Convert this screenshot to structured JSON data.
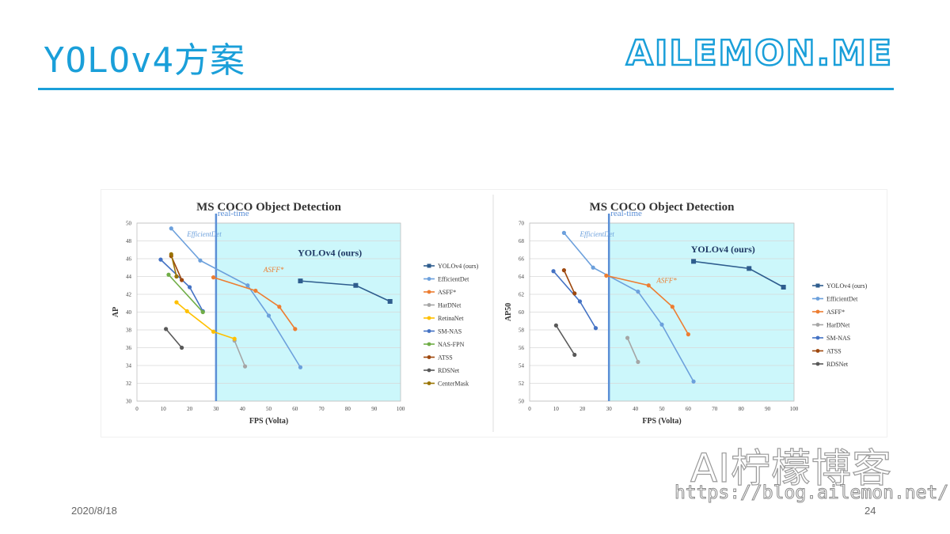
{
  "slide": {
    "title": "YOLOv4方案",
    "brand": "AILEMON.ME",
    "date": "2020/8/18",
    "page_number": "24"
  },
  "watermark": {
    "title": "AI柠檬博客",
    "url": "https://blog.ailemon.net/"
  },
  "colors": {
    "accent": "#1a9fd9",
    "realtime_fill": "#ccf7fb",
    "realtime_line": "#5b8fd6"
  },
  "chart_data": [
    {
      "type": "line",
      "title": "MS COCO Object Detection",
      "xlabel": "FPS (Volta)",
      "ylabel": "AP",
      "xlim": [
        0,
        100
      ],
      "ylim": [
        30,
        50
      ],
      "xticks": [
        0,
        10,
        20,
        30,
        40,
        50,
        60,
        70,
        80,
        90,
        100
      ],
      "yticks": [
        30,
        32,
        34,
        36,
        38,
        40,
        42,
        44,
        46,
        48,
        50
      ],
      "grid": true,
      "legend_position": "right",
      "realtime_x": 30,
      "annotations": [
        {
          "text": "real-time",
          "x": 30,
          "y": 50.8,
          "color": "#5b8fd6"
        },
        {
          "text": "EfficientDet",
          "x": 19,
          "y": 48.5,
          "color": "#6ca0dc"
        },
        {
          "text": "ASFF*",
          "x": 48,
          "y": 44.5,
          "color": "#ed7d31"
        },
        {
          "text": "YOLOv4 (ours)",
          "x": 61,
          "y": 46.3,
          "color": "#1f3864"
        }
      ],
      "series": [
        {
          "name": "YOLOv4 (ours)",
          "color": "#2e5d8e",
          "marker": "square",
          "x": [
            62,
            83,
            96
          ],
          "y": [
            43.5,
            43.0,
            41.2
          ]
        },
        {
          "name": "EfficientDet",
          "color": "#6ca0dc",
          "marker": "circle",
          "x": [
            13,
            24,
            42,
            50,
            62
          ],
          "y": [
            49.4,
            45.8,
            43.0,
            39.6,
            33.8
          ]
        },
        {
          "name": "ASFF*",
          "color": "#ed7d31",
          "marker": "circle",
          "x": [
            29,
            45,
            54,
            60
          ],
          "y": [
            43.9,
            42.4,
            40.6,
            38.1
          ]
        },
        {
          "name": "HarDNet",
          "color": "#a5a5a5",
          "marker": "circle",
          "x": [
            37,
            41
          ],
          "y": [
            36.8,
            33.9
          ]
        },
        {
          "name": "RetinaNet",
          "color": "#ffc000",
          "marker": "circle",
          "x": [
            15,
            19,
            29,
            37
          ],
          "y": [
            41.1,
            40.1,
            37.8,
            37.0
          ]
        },
        {
          "name": "SM-NAS",
          "color": "#4472c4",
          "marker": "circle",
          "x": [
            9,
            20,
            25
          ],
          "y": [
            45.9,
            42.8,
            40.1
          ]
        },
        {
          "name": "NAS-FPN",
          "color": "#70ad47",
          "marker": "circle",
          "x": [
            12,
            25
          ],
          "y": [
            44.2,
            40.0
          ]
        },
        {
          "name": "ATSS",
          "color": "#9e480e",
          "marker": "circle",
          "x": [
            13,
            17
          ],
          "y": [
            46.3,
            43.6
          ]
        },
        {
          "name": "RDSNet",
          "color": "#595959",
          "marker": "circle",
          "x": [
            11,
            17
          ],
          "y": [
            38.1,
            36.0
          ]
        },
        {
          "name": "CenterMask",
          "color": "#997300",
          "marker": "circle",
          "x": [
            13,
            15
          ],
          "y": [
            46.5,
            44.0
          ]
        }
      ]
    },
    {
      "type": "line",
      "title": "MS COCO Object Detection",
      "xlabel": "FPS (Volta)",
      "ylabel": "AP50",
      "xlim": [
        0,
        100
      ],
      "ylim": [
        50,
        70
      ],
      "xticks": [
        0,
        10,
        20,
        30,
        40,
        50,
        60,
        70,
        80,
        90,
        100
      ],
      "yticks": [
        50,
        52,
        54,
        56,
        58,
        60,
        62,
        64,
        66,
        68,
        70
      ],
      "grid": true,
      "legend_position": "right",
      "realtime_x": 30,
      "annotations": [
        {
          "text": "real-time",
          "x": 30,
          "y": 70.8,
          "color": "#5b8fd6"
        },
        {
          "text": "EfficientDet",
          "x": 19,
          "y": 68.5,
          "color": "#6ca0dc"
        },
        {
          "text": "ASFF*",
          "x": 48,
          "y": 63.3,
          "color": "#ed7d31"
        },
        {
          "text": "YOLOv4 (ours)",
          "x": 61,
          "y": 66.7,
          "color": "#1f3864"
        }
      ],
      "series": [
        {
          "name": "YOLOv4 (ours)",
          "color": "#2e5d8e",
          "marker": "square",
          "x": [
            62,
            83,
            96
          ],
          "y": [
            65.7,
            64.9,
            62.8
          ]
        },
        {
          "name": "EfficientDet",
          "color": "#6ca0dc",
          "marker": "circle",
          "x": [
            13,
            24,
            41,
            50,
            62
          ],
          "y": [
            68.9,
            65.0,
            62.3,
            58.6,
            52.2
          ]
        },
        {
          "name": "ASFF*",
          "color": "#ed7d31",
          "marker": "circle",
          "x": [
            29,
            45,
            54,
            60
          ],
          "y": [
            64.1,
            63.0,
            60.6,
            57.5
          ]
        },
        {
          "name": "HarDNet",
          "color": "#a5a5a5",
          "marker": "circle",
          "x": [
            37,
            41
          ],
          "y": [
            57.1,
            54.4
          ]
        },
        {
          "name": "SM-NAS",
          "color": "#4472c4",
          "marker": "circle",
          "x": [
            9,
            19,
            25
          ],
          "y": [
            64.6,
            61.2,
            58.2
          ]
        },
        {
          "name": "ATSS",
          "color": "#9e480e",
          "marker": "circle",
          "x": [
            13,
            17
          ],
          "y": [
            64.7,
            62.1
          ]
        },
        {
          "name": "RDSNet",
          "color": "#595959",
          "marker": "circle",
          "x": [
            10,
            17
          ],
          "y": [
            58.5,
            55.2
          ]
        }
      ]
    }
  ]
}
